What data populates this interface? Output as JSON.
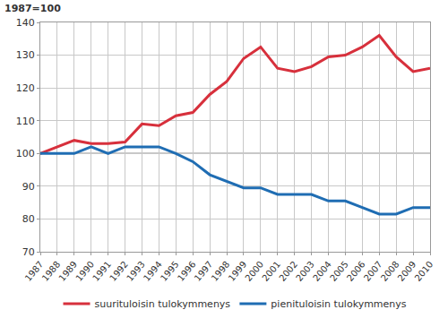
{
  "chart_data": {
    "type": "line",
    "title": "1987=100",
    "x": [
      1987,
      1988,
      1989,
      1990,
      1991,
      1992,
      1993,
      1994,
      1995,
      1996,
      1997,
      1998,
      1999,
      2000,
      2001,
      2002,
      2003,
      2004,
      2005,
      2006,
      2007,
      2008,
      2009,
      2010
    ],
    "series": [
      {
        "name": "suurituloisin tulokymmenys",
        "color": "#d7303c",
        "values": [
          100,
          102,
          104,
          103,
          103,
          103.5,
          109,
          108.5,
          111.5,
          112.5,
          118,
          122,
          129,
          132.5,
          126,
          125,
          126.5,
          129.5,
          130,
          132.5,
          136,
          129.5,
          125,
          126
        ]
      },
      {
        "name": "pienituloisin tulokymmenys",
        "color": "#1f6db3",
        "values": [
          100,
          100,
          100,
          102,
          100,
          102,
          102,
          102,
          100,
          97.5,
          93.5,
          91.5,
          89.5,
          89.5,
          87.5,
          87.5,
          87.5,
          85.5,
          85.5,
          83.5,
          81.5,
          81.5,
          83.5,
          83.5
        ]
      }
    ],
    "baseline": 100,
    "xlim": [
      1987,
      2010
    ],
    "xticks": [
      1987,
      1988,
      1989,
      1990,
      1991,
      1992,
      1993,
      1994,
      1995,
      1996,
      1997,
      1998,
      1999,
      2000,
      2001,
      2002,
      2003,
      2004,
      2005,
      2006,
      2007,
      2008,
      2009,
      2010
    ],
    "ylim": [
      70,
      140
    ],
    "yticks": [
      70,
      80,
      90,
      100,
      110,
      120,
      130,
      140
    ],
    "grid": true,
    "legend": "bottom"
  }
}
